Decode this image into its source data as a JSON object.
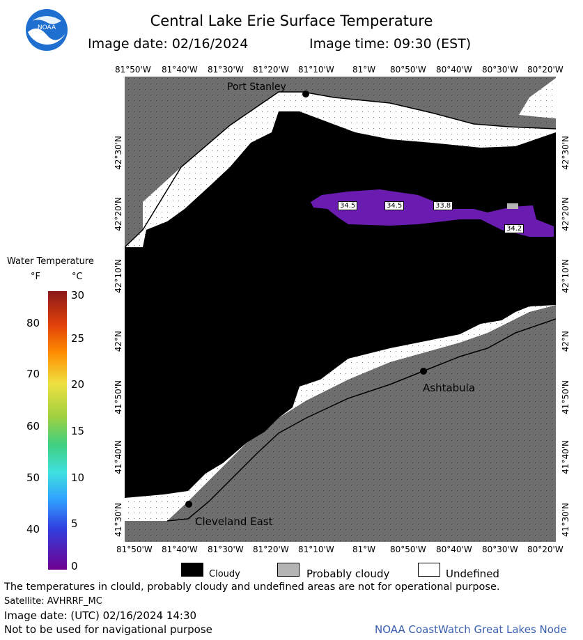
{
  "header": {
    "title": "Central Lake Erie Surface Temperature",
    "image_date": "Image date: 02/16/2024",
    "image_time": "Image time: 09:30 (EST)"
  },
  "logo": {
    "text": "NOAA"
  },
  "axes": {
    "top_lon": [
      "81°50'W",
      "81°40'W",
      "81°30'W",
      "81°20'W",
      "81°10'W",
      "81°W",
      "80°50'W",
      "80°40'W",
      "80°30'W",
      "80°20'W"
    ],
    "bottom_lon": [
      "81°50'W",
      "81°40'W",
      "81°30'W",
      "81°20'W",
      "81°10'W",
      "81°W",
      "80°50'W",
      "80°40'W",
      "80°30'W",
      "80°20'W"
    ],
    "left_lat": [
      "42°30'N",
      "42°20'N",
      "42°10'N",
      "42°N",
      "41°50'N",
      "41°40'N",
      "41°30'N"
    ],
    "right_lat": [
      "42°30'N",
      "42°20'N",
      "42°10'N",
      "42°N",
      "41°50'N",
      "41°40'N",
      "41°30'N"
    ]
  },
  "places": {
    "port_stanley": "Port Stanley",
    "ashtabula": "Ashtabula",
    "cleveland_east": "Cleveland East"
  },
  "temps": [
    "34.5",
    "34.5",
    "33.8",
    "34.2"
  ],
  "legend": {
    "title": "Water Temperature",
    "unit_f": "°F",
    "unit_c": "°C",
    "f_ticks": [
      "80",
      "70",
      "60",
      "50",
      "40"
    ],
    "c_ticks": [
      "30",
      "25",
      "20",
      "15",
      "10",
      "5",
      "0"
    ]
  },
  "key": {
    "cloudy": "Cloudy",
    "probably_cloudy": "Probably cloudy",
    "undefined": "Undefined"
  },
  "footer": {
    "disclaimer": "The temperatures in clould, probably cloudy and undefined areas are not for operational purpose.",
    "satellite": "Satellite: AVHRRF_MC",
    "utc_date": "Image date: (UTC) 02/16/2024  14:30",
    "nav": "Not to be used for navigational purpose",
    "credit": "NOAA CoastWatch Great Lakes Node"
  },
  "colors": {
    "land": "#6e6e6e",
    "cloud": "#000000",
    "undefined": "#ffffff",
    "prob_cloud": "#b4b4b4",
    "water_cold": "#6a1bb0",
    "credit": "#3a5fb0"
  }
}
